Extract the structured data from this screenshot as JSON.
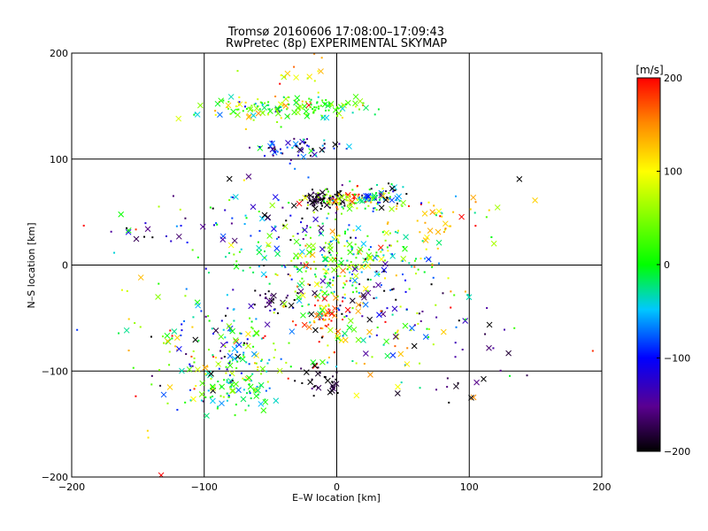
{
  "chart_data": {
    "type": "scatter",
    "title": "Tromsø 20160606 17:08:00–17:09:43",
    "subtitle": "RwPretec (8p) EXPERIMENTAL SKYMAP",
    "xlabel": "E–W location [km]",
    "ylabel": "N–S location [km]",
    "xlim": [
      -200,
      200
    ],
    "ylim": [
      -200,
      200
    ],
    "x_ticks": [
      -200,
      -100,
      0,
      100,
      200
    ],
    "y_ticks": [
      -200,
      -100,
      0,
      100,
      200
    ],
    "x_tick_labels": [
      "−200",
      "−100",
      "0",
      "100",
      "200"
    ],
    "y_tick_labels": [
      "−200",
      "−100",
      "0",
      "100",
      "200"
    ],
    "grid": true,
    "colorbar": {
      "label": "[m/s]",
      "range": [
        -200,
        200
      ],
      "ticks": [
        200,
        100,
        0,
        -100,
        -200
      ],
      "tick_labels": [
        "200",
        "100",
        "0",
        "−100",
        "−200"
      ],
      "colors": [
        "#000000",
        "#5a0090",
        "#0000ff",
        "#00c8ff",
        "#00ff00",
        "#ffff00",
        "#ff8800",
        "#ff0000"
      ]
    },
    "marker_types": [
      "dot",
      "cross"
    ],
    "clusters": [
      {
        "x": -50,
        "y": 147,
        "sx": 30,
        "sy": 6,
        "n": 120,
        "v": 40,
        "vs": 60
      },
      {
        "x": -25,
        "y": 110,
        "sx": 20,
        "sy": 5,
        "n": 60,
        "v": -120,
        "vs": 60
      },
      {
        "x": -10,
        "y": 62,
        "sx": 8,
        "sy": 4,
        "n": 70,
        "v": -190,
        "vs": 20
      },
      {
        "x": 10,
        "y": 62,
        "sx": 15,
        "sy": 6,
        "n": 80,
        "v": 80,
        "vs": 70
      },
      {
        "x": 33,
        "y": 65,
        "sx": 10,
        "sy": 6,
        "n": 60,
        "v": -60,
        "vs": 90
      },
      {
        "x": 70,
        "y": 40,
        "sx": 15,
        "sy": 10,
        "n": 30,
        "v": 150,
        "vs": 40
      },
      {
        "x": 0,
        "y": 5,
        "sx": 45,
        "sy": 15,
        "n": 220,
        "v": 20,
        "vs": 60
      },
      {
        "x": -50,
        "y": 40,
        "sx": 35,
        "sy": 20,
        "n": 80,
        "v": -100,
        "vs": 100
      },
      {
        "x": -10,
        "y": -30,
        "sx": 15,
        "sy": 15,
        "n": 60,
        "v": 70,
        "vs": 90
      },
      {
        "x": -10,
        "y": -50,
        "sx": 5,
        "sy": 8,
        "n": 35,
        "v": 170,
        "vs": 30
      },
      {
        "x": -45,
        "y": -35,
        "sx": 8,
        "sy": 8,
        "n": 25,
        "v": -190,
        "vs": 20
      },
      {
        "x": -80,
        "y": -80,
        "sx": 25,
        "sy": 25,
        "n": 180,
        "v": -20,
        "vs": 100
      },
      {
        "x": -75,
        "y": -120,
        "sx": 15,
        "sy": 10,
        "n": 60,
        "v": 0,
        "vs": 40
      },
      {
        "x": -10,
        "y": -110,
        "sx": 10,
        "sy": 6,
        "n": 30,
        "v": -190,
        "vs": 20
      },
      {
        "x": 25,
        "y": -30,
        "sx": 15,
        "sy": 15,
        "n": 40,
        "v": -150,
        "vs": 50
      },
      {
        "x": 20,
        "y": -70,
        "sx": 35,
        "sy": 20,
        "n": 70,
        "v": 20,
        "vs": 100
      },
      {
        "x": 100,
        "y": -80,
        "sx": 25,
        "sy": 30,
        "n": 25,
        "v": -180,
        "vs": 30
      },
      {
        "x": -140,
        "y": -80,
        "sx": 25,
        "sy": 40,
        "n": 30,
        "v": 100,
        "vs": 90
      },
      {
        "x": -140,
        "y": 40,
        "sx": 25,
        "sy": 15,
        "n": 20,
        "v": -50,
        "vs": 150
      },
      {
        "x": 50,
        "y": -20,
        "sx": 40,
        "sy": 40,
        "n": 60,
        "v": 0,
        "vs": 120
      },
      {
        "x": -5,
        "y": 150,
        "sx": 15,
        "sy": 5,
        "n": 40,
        "v": 20,
        "vs": 30
      },
      {
        "x": -30,
        "y": 180,
        "sx": 15,
        "sy": 8,
        "n": 15,
        "v": 130,
        "vs": 60
      },
      {
        "x": 110,
        "y": 60,
        "sx": 30,
        "sy": 15,
        "n": 10,
        "v": 20,
        "vs": 100
      }
    ]
  }
}
